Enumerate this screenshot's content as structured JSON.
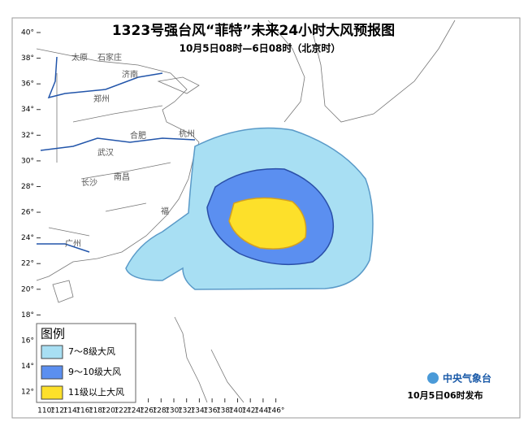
{
  "header": {
    "title": "1323号强台风“菲特”未来24小时大风预报图",
    "subtitle": "10月5日08时—6日08时（北京时）"
  },
  "map": {
    "lat_ticks": [
      {
        "value": 40,
        "label": "40°"
      },
      {
        "value": 38,
        "label": "38°"
      },
      {
        "value": 36,
        "label": "36°"
      },
      {
        "value": 34,
        "label": "34°"
      },
      {
        "value": 32,
        "label": "32°"
      },
      {
        "value": 30,
        "label": "30°"
      },
      {
        "value": 28,
        "label": "28°"
      },
      {
        "value": 26,
        "label": "26°"
      },
      {
        "value": 24,
        "label": "24°"
      },
      {
        "value": 22,
        "label": "22°"
      },
      {
        "value": 20,
        "label": "20°"
      },
      {
        "value": 18,
        "label": "18°"
      },
      {
        "value": 16,
        "label": "16°"
      },
      {
        "value": 14,
        "label": "14°"
      },
      {
        "value": 12,
        "label": "12°"
      }
    ],
    "lon_ticks": [
      {
        "value": 110,
        "label": "110°"
      },
      {
        "value": 112,
        "label": "112°"
      },
      {
        "value": 114,
        "label": "114°"
      },
      {
        "value": 116,
        "label": "116°"
      },
      {
        "value": 118,
        "label": "118°"
      },
      {
        "value": 120,
        "label": "120°"
      },
      {
        "value": 122,
        "label": "122°"
      },
      {
        "value": 124,
        "label": "124°"
      },
      {
        "value": 126,
        "label": "126°"
      },
      {
        "value": 128,
        "label": "128°"
      },
      {
        "value": 130,
        "label": "130°"
      },
      {
        "value": 132,
        "label": "132°"
      },
      {
        "value": 134,
        "label": "134°"
      },
      {
        "value": 136,
        "label": "136°"
      },
      {
        "value": 138,
        "label": "138°"
      },
      {
        "value": 140,
        "label": "140°"
      },
      {
        "value": 142,
        "label": "142°"
      },
      {
        "value": 144,
        "label": "144°"
      },
      {
        "value": 146,
        "label": "146°"
      }
    ],
    "cities": [
      "太原",
      "石家庄",
      "济南",
      "郑州",
      "合肥",
      "武汉",
      "长沙",
      "南昌",
      "杭州",
      "福",
      "广州"
    ]
  },
  "legend": {
    "title": "图例",
    "items": [
      {
        "label": "7～8级大风",
        "color": "#a8dff3"
      },
      {
        "label": "9～10级大风",
        "color": "#5b8ff0"
      },
      {
        "label": "11级以上大风",
        "color": "#fde02a"
      }
    ]
  },
  "footer": {
    "logo": "中央气象台",
    "issued": "10月5日06时发布"
  }
}
